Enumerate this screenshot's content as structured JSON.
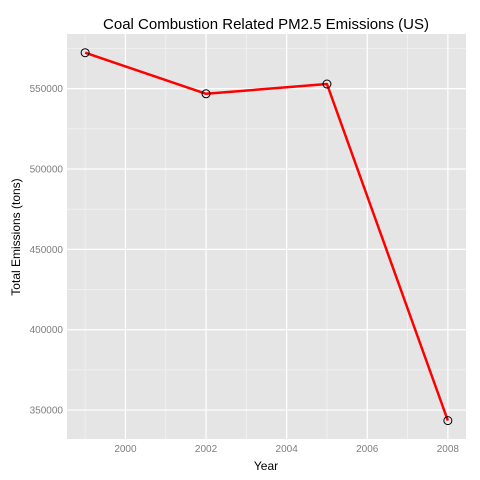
{
  "chart_data": {
    "type": "line",
    "title": "Coal Combustion Related PM2.5 Emissions (US)",
    "xlabel": "Year",
    "ylabel": "Total Emissions (tons)",
    "x": [
      1999,
      2002,
      2005,
      2008
    ],
    "series": [
      {
        "values": [
          572346,
          546789,
          552881,
          343432
        ]
      }
    ],
    "xlim": [
      1998.55,
      2008.45
    ],
    "ylim": [
      332000,
      584000
    ],
    "xticks": [
      2000,
      2002,
      2004,
      2006,
      2008
    ],
    "yticks": [
      350000,
      400000,
      450000,
      500000,
      550000
    ],
    "xtick_labels": [
      "2000",
      "2002",
      "2004",
      "2006",
      "2008"
    ],
    "ytick_labels": [
      "350000",
      "400000",
      "450000",
      "500000",
      "550000"
    ],
    "grid": true,
    "colors": {
      "panel": "#e5e5e5",
      "grid_major": "#ffffff",
      "grid_minor": "#f2f2f2",
      "line": "#ff0000",
      "marker": "#000000"
    }
  }
}
